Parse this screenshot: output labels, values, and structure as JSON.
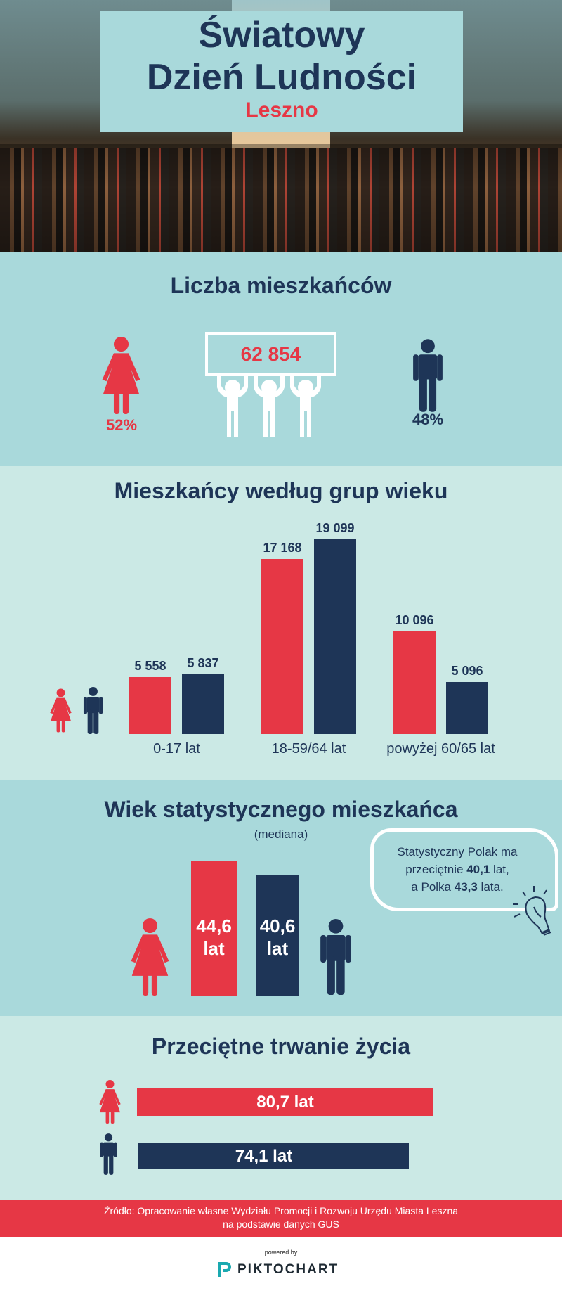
{
  "header": {
    "title_line1": "Światowy",
    "title_line2": "Dzień Ludności",
    "city": "Leszno"
  },
  "population": {
    "title": "Liczba mieszkańców",
    "total": "62 854",
    "women_pct": "52%",
    "men_pct": "48%"
  },
  "age_groups": {
    "title": "Mieszkańcy według grup wieku"
  },
  "median": {
    "title": "Wiek statystycznego mieszkańca",
    "subtitle": "(mediana)",
    "women_value": "44,6",
    "men_value": "40,6",
    "unit": "lat",
    "bubble": {
      "l1": "Statystyczny Polak ma",
      "l2a": "przeciętnie ",
      "l2b": "40,1",
      "l2c": " lat,",
      "l3a": "a Polka ",
      "l3b": "43,3",
      "l3c": " lata."
    }
  },
  "life": {
    "title": "Przeciętne trwanie życia",
    "women": "80,7 lat",
    "men": "74,1 lat"
  },
  "footer": {
    "line1": "Źródło: Opracowanie własne Wydziału Promocji i Rozwoju Urzędu Miasta Leszna",
    "line2": "na podstawie danych GUS",
    "powered": "powered by",
    "brand": "PIKTOCHART"
  },
  "colors": {
    "women": "#e63745",
    "men": "#1e3557",
    "bg1": "#a9d9db",
    "bg2": "#cbe9e5"
  },
  "chart_data": [
    {
      "type": "bar",
      "title": "Mieszkańcy według grup wieku",
      "categories": [
        "0-17 lat",
        "18-59/64 lat",
        "powyżej 60/65 lat"
      ],
      "series": [
        {
          "name": "kobiety",
          "values": [
            5558,
            17168,
            10096
          ]
        },
        {
          "name": "mężczyźni",
          "values": [
            5837,
            19099,
            5096
          ]
        }
      ],
      "labels": [
        [
          "5 558",
          "5 837"
        ],
        [
          "17 168",
          "19 099"
        ],
        [
          "10 096",
          "5 096"
        ]
      ],
      "ylim": [
        0,
        19099
      ]
    },
    {
      "type": "bar",
      "title": "Wiek statystycznego mieszkańca",
      "categories": [
        "kobiety",
        "mężczyźni"
      ],
      "values": [
        44.6,
        40.6
      ]
    },
    {
      "type": "bar",
      "title": "Przeciętne trwanie życia",
      "categories": [
        "kobiety",
        "mężczyźni"
      ],
      "values": [
        80.7,
        74.1
      ]
    }
  ]
}
